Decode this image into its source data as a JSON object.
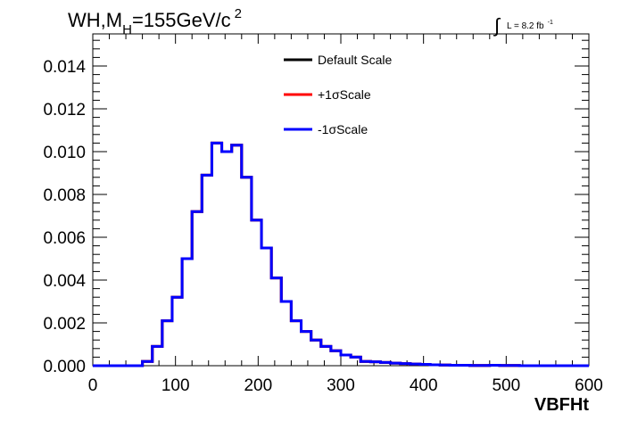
{
  "chart_data": {
    "type": "line",
    "title_main": "WH,M",
    "title_sub": "H",
    "title_rest": "=155GeV/c",
    "title_sup": "2",
    "lumi_text": "L = 8.2 fb",
    "lumi_sup": "-1",
    "xlabel": "VBFHt",
    "xlim": [
      0,
      600
    ],
    "ylim": [
      0,
      0.0155
    ],
    "x_ticks": [
      "0",
      "100",
      "200",
      "300",
      "400",
      "500",
      "600"
    ],
    "x_tick_values": [
      0,
      100,
      200,
      300,
      400,
      500,
      600
    ],
    "y_ticks": [
      "0.000",
      "0.002",
      "0.004",
      "0.006",
      "0.008",
      "0.010",
      "0.012",
      "0.014"
    ],
    "y_tick_values": [
      0,
      0.002,
      0.004,
      0.006,
      0.008,
      0.01,
      0.012,
      0.014
    ],
    "bin_width": 12,
    "bin_edges_start": 0,
    "series": [
      {
        "name": "Default Scale",
        "color": "#000000",
        "values": [
          0,
          0,
          0,
          0,
          0,
          0.0002,
          0.0009,
          0.0021,
          0.0032,
          0.005,
          0.0072,
          0.0089,
          0.0104,
          0.01,
          0.0103,
          0.0088,
          0.0068,
          0.0055,
          0.0041,
          0.003,
          0.0021,
          0.0016,
          0.0012,
          0.0009,
          0.0007,
          0.0005,
          0.0004,
          0.0002,
          0.00018,
          0.00015,
          0.00012,
          0.0001,
          8e-05,
          6e-05,
          4e-05,
          3e-05,
          2e-05,
          2e-05,
          1e-05,
          1e-05,
          2e-05,
          1e-05,
          1e-05,
          0,
          0,
          0,
          0,
          0,
          0,
          0
        ]
      },
      {
        "name": "+1σScale",
        "color": "#ff0000",
        "values": [
          0,
          0,
          0,
          0,
          0,
          0.0002,
          0.0009,
          0.0021,
          0.0032,
          0.005,
          0.0072,
          0.0089,
          0.0104,
          0.01,
          0.0103,
          0.0088,
          0.0068,
          0.0055,
          0.0041,
          0.003,
          0.0021,
          0.0016,
          0.0012,
          0.0009,
          0.0007,
          0.0005,
          0.0004,
          0.0002,
          0.00018,
          0.00015,
          0.00012,
          0.0001,
          8e-05,
          6e-05,
          4e-05,
          3e-05,
          2e-05,
          2e-05,
          1e-05,
          1e-05,
          2e-05,
          1e-05,
          1e-05,
          0,
          0,
          0,
          0,
          0,
          0,
          0
        ]
      },
      {
        "name": "-1σScale",
        "color": "#0000ff",
        "values": [
          0,
          0,
          0,
          0,
          0,
          0.0002,
          0.0009,
          0.0021,
          0.0032,
          0.005,
          0.0072,
          0.0089,
          0.0104,
          0.01,
          0.0103,
          0.0088,
          0.0068,
          0.0055,
          0.0041,
          0.003,
          0.0021,
          0.0016,
          0.0012,
          0.0009,
          0.0007,
          0.0005,
          0.0004,
          0.0002,
          0.00018,
          0.00015,
          0.00012,
          0.0001,
          8e-05,
          6e-05,
          4e-05,
          3e-05,
          2e-05,
          2e-05,
          1e-05,
          1e-05,
          2e-05,
          1e-05,
          1e-05,
          0,
          0,
          0,
          0,
          0,
          0,
          0
        ]
      }
    ],
    "legend": {
      "placement": "top-center",
      "entries": [
        "Default Scale",
        "+1σScale",
        "-1σScale"
      ]
    },
    "grid": false
  }
}
